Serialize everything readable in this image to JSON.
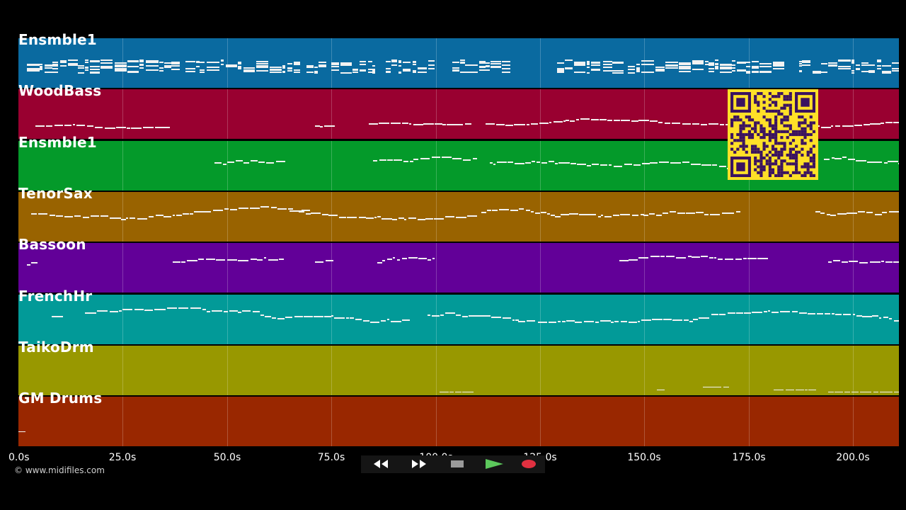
{
  "tracks": [
    {
      "name": "Ensmble1",
      "color": "#0a6aa0",
      "style": "dense"
    },
    {
      "name": "WoodBass",
      "color": "#990030",
      "style": "flat"
    },
    {
      "name": "Ensmble1",
      "color": "#049a2a",
      "style": "wave"
    },
    {
      "name": "TenorSax",
      "color": "#996300",
      "style": "wave"
    },
    {
      "name": "Bassoon",
      "color": "#620098",
      "style": "wave"
    },
    {
      "name": "FrenchHr",
      "color": "#029a98",
      "style": "wave"
    },
    {
      "name": "TaikoDrm",
      "color": "#989800",
      "style": "sparse"
    },
    {
      "name": "GM Drums",
      "color": "#992700",
      "style": "tiny"
    }
  ],
  "timeline": {
    "labels": [
      "0.0s",
      "25.0s",
      "50.0s",
      "75.0s",
      "100.0s",
      "125.0s",
      "150.0s",
      "175.0s",
      "200.0s"
    ],
    "max_seconds": 211
  },
  "copyright": "© www.midifiles.com",
  "controls": [
    {
      "id": "rewind",
      "icon": "rewind-icon",
      "color": "#1e1e1e"
    },
    {
      "id": "fast-forward",
      "icon": "fast-forward-icon",
      "color": "#1e1e1e"
    },
    {
      "id": "stop",
      "icon": "stop-icon",
      "color": "#3a3a3a"
    },
    {
      "id": "play",
      "icon": "play-icon",
      "color": "#2c6e2c"
    },
    {
      "id": "record",
      "icon": "record-icon",
      "color": "#5a1a1a"
    }
  ],
  "qr_code": {
    "color": "#ffe028",
    "dark": "#3a1260"
  }
}
